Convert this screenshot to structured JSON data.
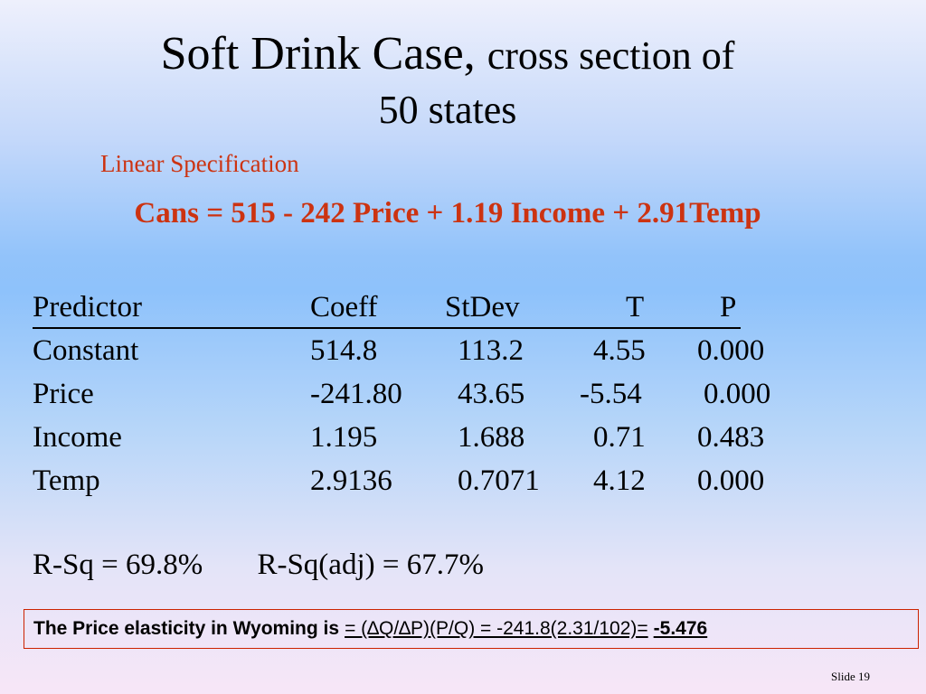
{
  "title": {
    "main": "Soft Drink Case,",
    "sub": "cross section of",
    "line2": "50 states"
  },
  "specification_label": "Linear Specification",
  "equation": "Cans = 515 - 242 Price + 1.19 Income + 2.91Temp",
  "table": {
    "headers": [
      "Predictor",
      "Coeff",
      "StDev",
      "T",
      "P"
    ],
    "rows": [
      [
        "Constant",
        "514.8",
        "113.2",
        "4.55",
        "0.000"
      ],
      [
        "Price",
        "-241.80",
        "43.65",
        "-5.54",
        "0.000"
      ],
      [
        "Income",
        "1.195",
        "1.688",
        "0.71",
        "0.483"
      ],
      [
        "Temp",
        "2.9136",
        "0.7071",
        "4.12",
        "0.000"
      ]
    ]
  },
  "r_squared": "R-Sq = 69.8%",
  "r_squared_adj": "R-Sq(adj) = 67.7%",
  "elasticity": {
    "lead": "The Price elasticity in Wyoming is",
    "formula": "= (∆Q/∆P)(P/Q) = -241.8(2.31/102)=",
    "result": "-5.476"
  },
  "slide_number": "Slide 19",
  "colors": {
    "accent_red": "#cc3311",
    "box_border": "#cc2200"
  }
}
